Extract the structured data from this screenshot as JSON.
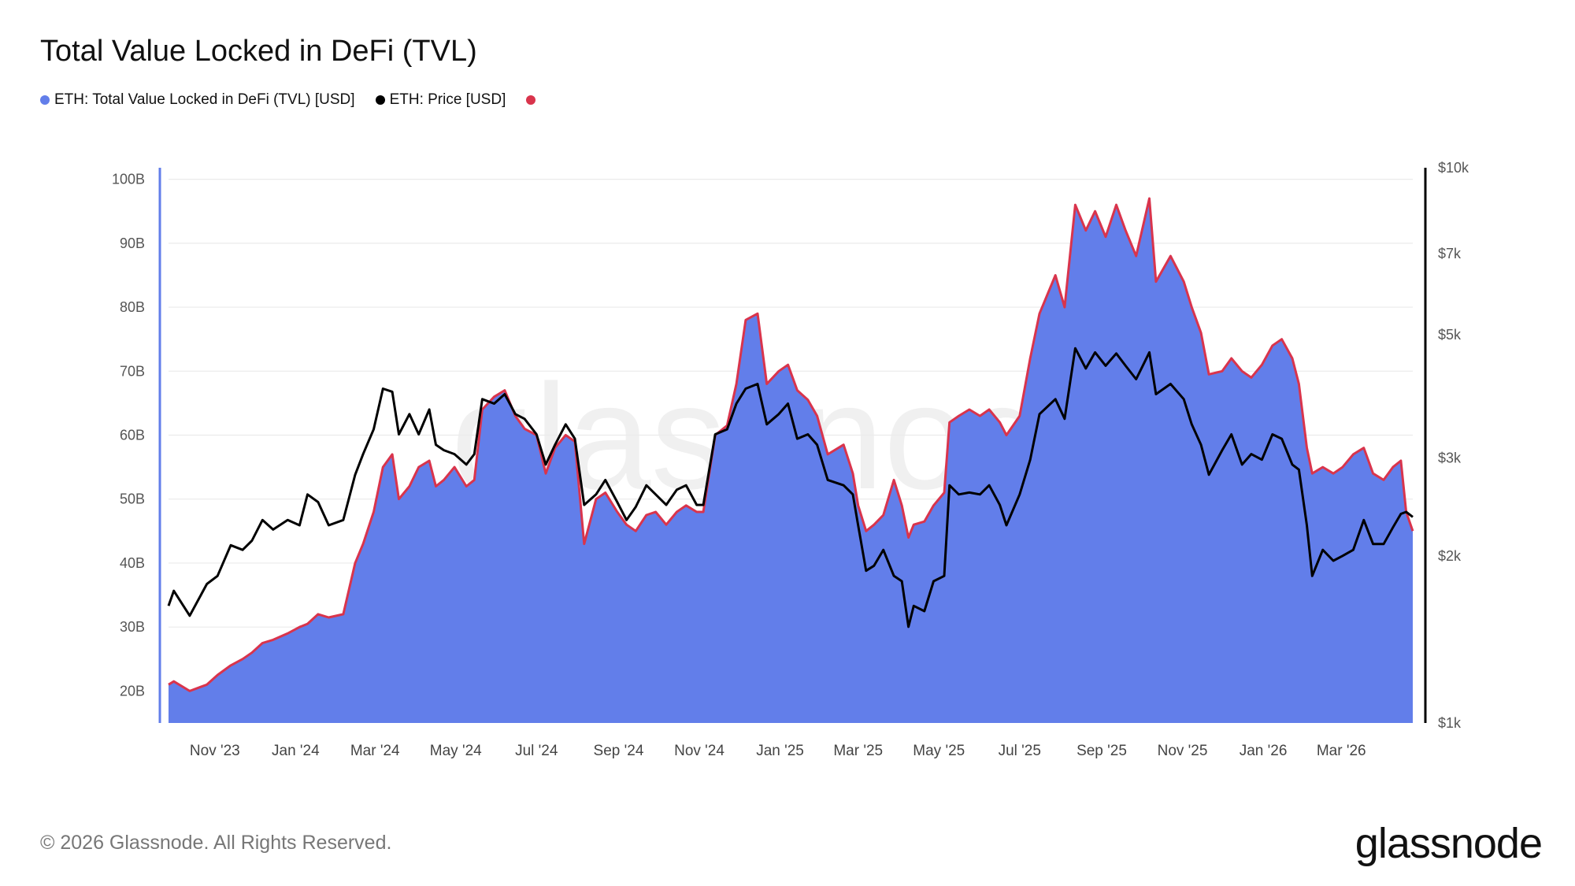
{
  "title": "Total Value Locked in DeFi (TVL)",
  "legend": [
    {
      "label": "ETH: Total Value Locked in DeFi (TVL) [USD]",
      "color": "#627eea"
    },
    {
      "label": "ETH: Price [USD]",
      "color": "#000000"
    },
    {
      "label": "",
      "color": "#d9344c"
    }
  ],
  "footer": "© 2026 Glassnode. All Rights Reserved.",
  "logo": "glassnode",
  "watermark": "glassnode",
  "chart_data": {
    "type": "area",
    "title": "Total Value Locked in DeFi (TVL)",
    "x_type": "date",
    "x_range": [
      "2023-09-27",
      "2026-04-24"
    ],
    "x_ticks": [
      {
        "date": "2023-11-01",
        "label": "Nov '23"
      },
      {
        "date": "2024-01-01",
        "label": "Jan '24"
      },
      {
        "date": "2024-03-01",
        "label": "Mar '24"
      },
      {
        "date": "2024-05-01",
        "label": "May '24"
      },
      {
        "date": "2024-07-01",
        "label": "Jul '24"
      },
      {
        "date": "2024-09-01",
        "label": "Sep '24"
      },
      {
        "date": "2024-11-01",
        "label": "Nov '24"
      },
      {
        "date": "2025-01-01",
        "label": "Jan '25"
      },
      {
        "date": "2025-03-01",
        "label": "Mar '25"
      },
      {
        "date": "2025-05-01",
        "label": "May '25"
      },
      {
        "date": "2025-07-01",
        "label": "Jul '25"
      },
      {
        "date": "2025-09-01",
        "label": "Sep '25"
      },
      {
        "date": "2025-11-01",
        "label": "Nov '25"
      },
      {
        "date": "2026-01-01",
        "label": "Jan '26"
      },
      {
        "date": "2026-03-01",
        "label": "Mar '26"
      }
    ],
    "y_left": {
      "scale": "linear",
      "range": [
        15,
        101.8
      ],
      "unit": "B USD",
      "ticks": [
        {
          "v": 20,
          "label": "20B"
        },
        {
          "v": 30,
          "label": "30B"
        },
        {
          "v": 40,
          "label": "40B"
        },
        {
          "v": 50,
          "label": "50B"
        },
        {
          "v": 60,
          "label": "60B"
        },
        {
          "v": 70,
          "label": "70B"
        },
        {
          "v": 80,
          "label": "80B"
        },
        {
          "v": 90,
          "label": "90B"
        },
        {
          "v": 100,
          "label": "100B"
        }
      ]
    },
    "y_right": {
      "scale": "log",
      "range": [
        1000,
        10000
      ],
      "ticks": [
        {
          "v": 1000,
          "label": "$1k"
        },
        {
          "v": 2000,
          "label": "$2k"
        },
        {
          "v": 3000,
          "label": "$3k"
        },
        {
          "v": 5000,
          "label": "$5k"
        },
        {
          "v": 7000,
          "label": "$7k"
        },
        {
          "v": 10000,
          "label": "$10k"
        }
      ]
    },
    "grid": true,
    "legend_position": "top-left",
    "x": [
      "2023-09-27",
      "2023-10-01",
      "2023-10-13",
      "2023-10-26",
      "2023-11-03",
      "2023-11-13",
      "2023-11-22",
      "2023-11-29",
      "2023-12-07",
      "2023-12-15",
      "2023-12-26",
      "2024-01-04",
      "2024-01-10",
      "2024-01-18",
      "2024-01-26",
      "2024-02-06",
      "2024-02-15",
      "2024-02-21",
      "2024-02-29",
      "2024-03-07",
      "2024-03-14",
      "2024-03-19",
      "2024-03-27",
      "2024-04-03",
      "2024-04-11",
      "2024-04-16",
      "2024-04-22",
      "2024-04-30",
      "2024-05-09",
      "2024-05-15",
      "2024-05-21",
      "2024-05-30",
      "2024-06-07",
      "2024-06-15",
      "2024-06-22",
      "2024-07-01",
      "2024-07-08",
      "2024-07-15",
      "2024-07-23",
      "2024-07-30",
      "2024-08-06",
      "2024-08-15",
      "2024-08-22",
      "2024-08-31",
      "2024-09-07",
      "2024-09-14",
      "2024-09-22",
      "2024-09-29",
      "2024-10-07",
      "2024-10-15",
      "2024-10-22",
      "2024-10-30",
      "2024-11-04",
      "2024-11-13",
      "2024-11-22",
      "2024-11-29",
      "2024-12-06",
      "2024-12-15",
      "2024-12-22",
      "2024-12-31",
      "2025-01-07",
      "2025-01-14",
      "2025-01-22",
      "2025-01-29",
      "2025-02-06",
      "2025-02-18",
      "2025-02-25",
      "2025-03-01",
      "2025-03-07",
      "2025-03-13",
      "2025-03-20",
      "2025-03-28",
      "2025-04-03",
      "2025-04-08",
      "2025-04-12",
      "2025-04-20",
      "2025-04-27",
      "2025-05-05",
      "2025-05-09",
      "2025-05-16",
      "2025-05-24",
      "2025-06-01",
      "2025-06-08",
      "2025-06-16",
      "2025-06-21",
      "2025-07-01",
      "2025-07-09",
      "2025-07-16",
      "2025-07-28",
      "2025-08-04",
      "2025-08-12",
      "2025-08-20",
      "2025-08-27",
      "2025-09-04",
      "2025-09-12",
      "2025-09-19",
      "2025-09-27",
      "2025-10-07",
      "2025-10-12",
      "2025-10-23",
      "2025-11-02",
      "2025-11-08",
      "2025-11-15",
      "2025-11-21",
      "2025-12-01",
      "2025-12-08",
      "2025-12-16",
      "2025-12-23",
      "2025-12-31",
      "2026-01-08",
      "2026-01-15",
      "2026-01-23",
      "2026-01-28",
      "2026-02-03",
      "2026-02-07",
      "2026-02-15",
      "2026-02-23",
      "2026-03-02",
      "2026-03-10",
      "2026-03-18",
      "2026-03-25",
      "2026-04-02",
      "2026-04-09",
      "2026-04-15",
      "2026-04-19",
      "2026-04-24"
    ],
    "series": [
      {
        "name": "ETH: Total Value Locked in DeFi (TVL) [USD]",
        "axis": "left",
        "type": "area",
        "color": "#627eea",
        "values": [
          21,
          21.5,
          20,
          21,
          22.5,
          24,
          25,
          26,
          27.5,
          28,
          29,
          30,
          30.5,
          32,
          31.5,
          32,
          40,
          43,
          48,
          55,
          57,
          50,
          52,
          55,
          56,
          52,
          53,
          55,
          52,
          53,
          64,
          66,
          67,
          63,
          61,
          60,
          54,
          58,
          60,
          59,
          43,
          50,
          51,
          48,
          46,
          45,
          47.5,
          48,
          46,
          48,
          49,
          48,
          48,
          60,
          61.5,
          68,
          78,
          79,
          68,
          70,
          71,
          67,
          65.5,
          63,
          57,
          58.5,
          54,
          49,
          45,
          46,
          47.5,
          53,
          49,
          44,
          46,
          46.5,
          49,
          51,
          62,
          63,
          64,
          63,
          64,
          62,
          60,
          63,
          72,
          79,
          85,
          80,
          96,
          92,
          95,
          91,
          96,
          92,
          88,
          97,
          84,
          88,
          84,
          80,
          76,
          69.5,
          70,
          72,
          70,
          69,
          71,
          74,
          75,
          72,
          68,
          58,
          54,
          55,
          54,
          55,
          57,
          58,
          54,
          53,
          55,
          56,
          48,
          45
        ]
      },
      {
        "name": "ETH: Price [USD]",
        "axis": "right",
        "type": "line",
        "color": "#000000",
        "values": [
          1625,
          1730,
          1560,
          1780,
          1840,
          2090,
          2050,
          2130,
          2320,
          2230,
          2320,
          2270,
          2580,
          2500,
          2270,
          2320,
          2800,
          3050,
          3380,
          4000,
          3950,
          3310,
          3600,
          3310,
          3670,
          3170,
          3100,
          3050,
          2920,
          3050,
          3830,
          3760,
          3910,
          3600,
          3530,
          3310,
          2920,
          3170,
          3450,
          3250,
          2470,
          2580,
          2740,
          2500,
          2320,
          2450,
          2680,
          2580,
          2470,
          2630,
          2680,
          2470,
          2470,
          3310,
          3380,
          3760,
          4000,
          4080,
          3450,
          3600,
          3760,
          3250,
          3310,
          3170,
          2740,
          2680,
          2580,
          2270,
          1880,
          1920,
          2050,
          1840,
          1800,
          1490,
          1625,
          1590,
          1800,
          1840,
          2680,
          2580,
          2600,
          2580,
          2680,
          2470,
          2270,
          2580,
          2980,
          3600,
          3830,
          3530,
          4730,
          4350,
          4650,
          4400,
          4630,
          4400,
          4160,
          4650,
          3910,
          4080,
          3830,
          3450,
          3170,
          2800,
          3100,
          3310,
          2920,
          3050,
          2980,
          3310,
          3250,
          2920,
          2860,
          2270,
          1840,
          2050,
          1960,
          2000,
          2050,
          2320,
          2100,
          2100,
          2250,
          2380,
          2400,
          2350
        ]
      },
      {
        "axis": "left",
        "type": "line",
        "color": "#d9344c",
        "outline_of": "ETH: Total Value Locked in DeFi (TVL) [USD]"
      }
    ]
  }
}
